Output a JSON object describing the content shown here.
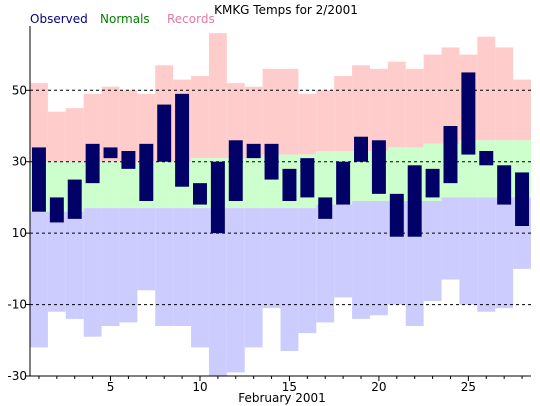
{
  "title": "KMKG Temps for 2/2001",
  "legend": [
    {
      "label": "Observed",
      "color": "#000080"
    },
    {
      "label": "Normals",
      "color": "#008000"
    },
    {
      "label": "Records",
      "color": "#e07aa8"
    }
  ],
  "chart_data": {
    "type": "bar",
    "title": "KMKG Temps for 2/2001",
    "xlabel": "February 2001",
    "ylabel": "",
    "xlim": [
      0.5,
      28.5
    ],
    "ylim": [
      -30,
      68
    ],
    "x_ticks": [
      5,
      10,
      15,
      20,
      25
    ],
    "y_ticks": [
      -30,
      -10,
      10,
      30,
      50
    ],
    "y_gridlines": [
      -10,
      10,
      30,
      50
    ],
    "grid_style": "dashed horizontal",
    "days": [
      1,
      2,
      3,
      4,
      5,
      6,
      7,
      8,
      9,
      10,
      11,
      12,
      13,
      14,
      15,
      16,
      17,
      18,
      19,
      20,
      21,
      22,
      23,
      24,
      25,
      26,
      27,
      28
    ],
    "series": [
      {
        "name": "Observed",
        "color": "#000066",
        "high": [
          34,
          20,
          25,
          35,
          34,
          33,
          35,
          46,
          49,
          24,
          30,
          36,
          35,
          35,
          28,
          31,
          20,
          30,
          37,
          36,
          21,
          29,
          28,
          40,
          55,
          33,
          29,
          27
        ],
        "low": [
          16,
          13,
          14,
          24,
          31,
          28,
          19,
          30,
          23,
          18,
          10,
          19,
          31,
          25,
          19,
          20,
          14,
          18,
          30,
          21,
          9,
          9,
          20,
          24,
          32,
          29,
          18,
          12
        ]
      },
      {
        "name": "Normals",
        "color": "#ccffcc",
        "high": [
          30,
          30,
          30,
          30,
          30,
          30,
          30,
          30,
          30,
          31,
          31,
          31,
          31,
          32,
          32,
          32,
          33,
          33,
          33,
          33,
          34,
          34,
          35,
          35,
          36,
          36,
          36,
          36
        ],
        "low": [
          16,
          16,
          16,
          17,
          17,
          17,
          17,
          17,
          17,
          17,
          17,
          17,
          17,
          17,
          17,
          17,
          18,
          18,
          19,
          19,
          19,
          19,
          19,
          20,
          20,
          20,
          20,
          20
        ]
      },
      {
        "name": "Records",
        "high_color": "#ffcccc",
        "low_color": "#ccccff",
        "high": [
          52,
          44,
          45,
          49,
          51,
          50,
          49,
          57,
          53,
          54,
          66,
          52,
          51,
          56,
          56,
          49,
          50,
          54,
          57,
          56,
          58,
          56,
          60,
          62,
          60,
          65,
          62,
          53
        ],
        "low": [
          -22,
          -12,
          -14,
          -19,
          -16,
          -15,
          -6,
          -16,
          -16,
          -22,
          -30,
          -29,
          -22,
          -11,
          -23,
          -18,
          -15,
          -8,
          -14,
          -13,
          -10,
          -16,
          -9,
          -3,
          -10,
          -12,
          -11,
          0
        ]
      }
    ]
  }
}
